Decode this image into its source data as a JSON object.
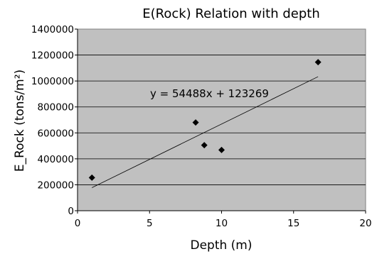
{
  "chart_data": {
    "type": "scatter",
    "title": "E(Rock) Relation with depth",
    "xlabel": "Depth (m)",
    "ylabel": "E_Rock  (tons/m²)",
    "xlim": [
      0,
      20
    ],
    "ylim": [
      0,
      1400000
    ],
    "x_ticks": [
      "0",
      "5",
      "10",
      "15",
      "20"
    ],
    "y_ticks": [
      "0",
      "200000",
      "400000",
      "600000",
      "800000",
      "1000000",
      "1200000",
      "1400000"
    ],
    "grid": "horizontal",
    "legend": "none",
    "series": [
      {
        "x": [
          1.0,
          8.2,
          8.8,
          10.0,
          16.7
        ],
        "y": [
          255000,
          680000,
          505000,
          468000,
          1145000
        ]
      }
    ],
    "trendline": {
      "equation": "y = 54488x + 123269",
      "slope": 54488,
      "intercept": 123269,
      "x_range": [
        1.0,
        16.7
      ]
    },
    "colors": {
      "plot_background": "#c0c0c0",
      "gridline": "#000000",
      "marker": "#000000",
      "trendline": "#000000"
    }
  }
}
